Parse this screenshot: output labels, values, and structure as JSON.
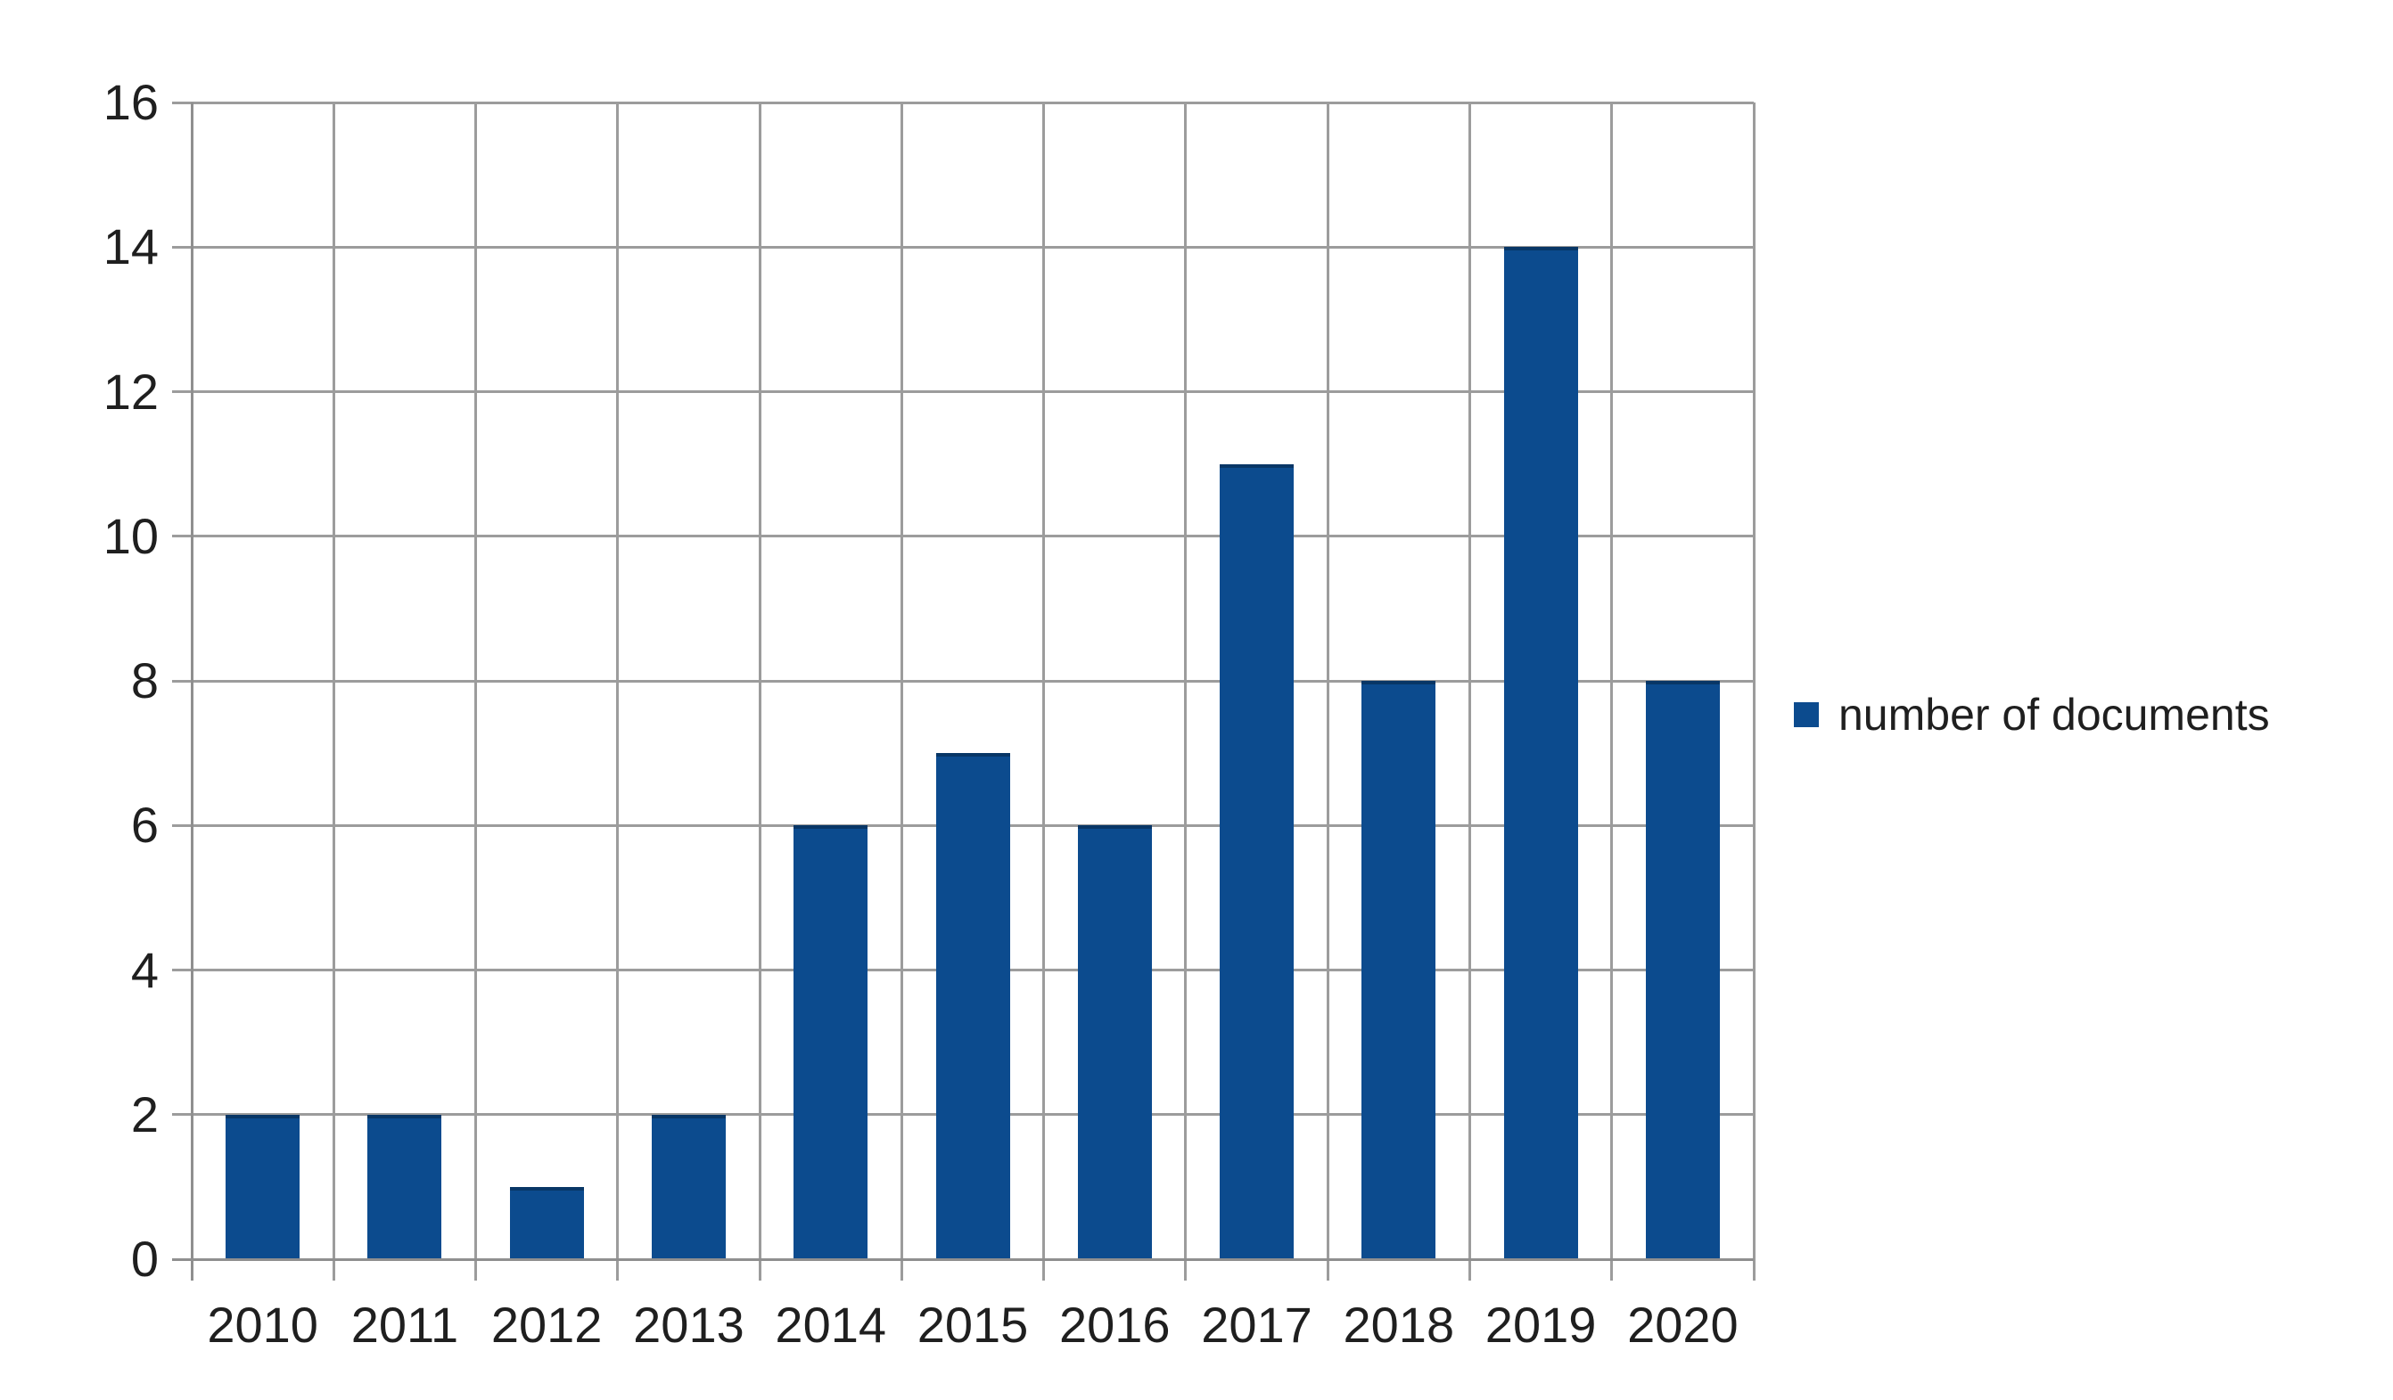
{
  "chart_data": {
    "type": "bar",
    "categories": [
      "2010",
      "2011",
      "2012",
      "2013",
      "2014",
      "2015",
      "2016",
      "2017",
      "2018",
      "2019",
      "2020"
    ],
    "values": [
      2,
      2,
      1,
      2,
      6,
      7,
      6,
      11,
      8,
      14,
      8
    ],
    "series": [
      {
        "name": "number of documents",
        "values": [
          2,
          2,
          1,
          2,
          6,
          7,
          6,
          11,
          8,
          14,
          8
        ]
      }
    ],
    "title": "",
    "xlabel": "",
    "ylabel": "",
    "ylim": [
      0,
      16
    ],
    "yticks": [
      0,
      2,
      4,
      6,
      8,
      10,
      12,
      14,
      16
    ],
    "grid": true,
    "legend_position": "right",
    "legend_label": "number of documents",
    "colors": {
      "bar": "#0c4b8e",
      "grid": "#9c9c9c",
      "axis": "#8f8f8f",
      "text": "#1f1f1f",
      "background": "#ffffff"
    }
  }
}
